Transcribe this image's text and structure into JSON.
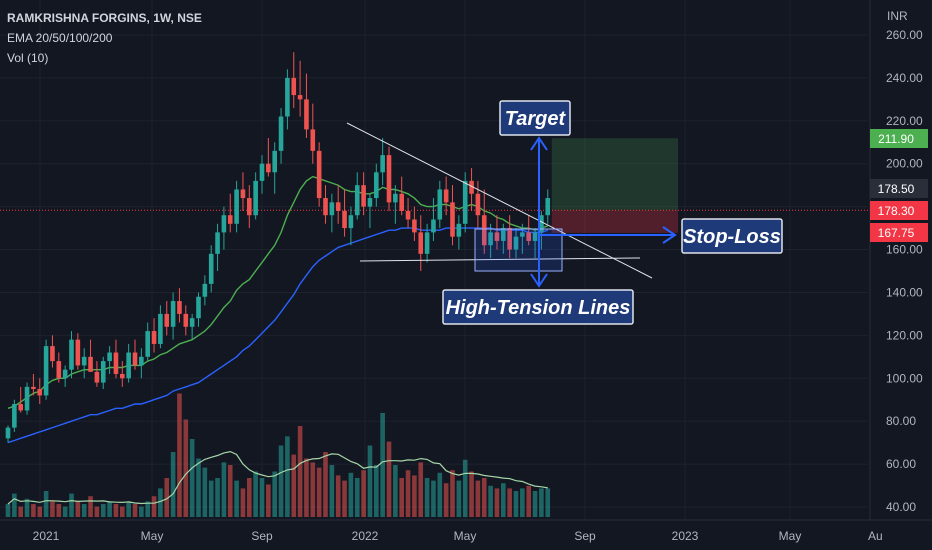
{
  "header": {
    "symbol": "RAMKRISHNA FORGINS, 1W, NSE",
    "indicator": "EMA 20/50/100/200",
    "volume": "Vol (10)"
  },
  "currency": "INR",
  "colors": {
    "background": "#131722",
    "up": "#26a69a",
    "down": "#ef5350",
    "ema_fast": "#4caf50",
    "ema_slow": "#2962ff",
    "target_badge": "#4caf50",
    "stop_badge": "#f23645",
    "annotation_box": "#1e3a78",
    "annotation_arrow": "#2962ff"
  },
  "chart_data": {
    "type": "candlestick",
    "y_axis_labels": [
      "260.00",
      "240.00",
      "220.00",
      "200.00",
      "180.00",
      "160.00",
      "140.00",
      "120.00",
      "100.00",
      "80.00",
      "60.00",
      "40.00"
    ],
    "x_axis_labels": [
      "2021",
      "May",
      "Sep",
      "2022",
      "May",
      "Sep",
      "2023",
      "May",
      "Au"
    ],
    "ylim": [
      36,
      264
    ],
    "ohlc_weekly": [
      [
        72,
        78,
        70,
        77
      ],
      [
        77,
        90,
        75,
        88
      ],
      [
        88,
        96,
        84,
        85
      ],
      [
        85,
        98,
        83,
        96
      ],
      [
        96,
        102,
        92,
        95
      ],
      [
        95,
        100,
        88,
        92
      ],
      [
        92,
        118,
        90,
        115
      ],
      [
        115,
        120,
        105,
        108
      ],
      [
        108,
        112,
        98,
        100
      ],
      [
        100,
        106,
        96,
        104
      ],
      [
        104,
        122,
        100,
        118
      ],
      [
        118,
        121,
        104,
        106
      ],
      [
        106,
        114,
        100,
        110
      ],
      [
        110,
        118,
        106,
        103
      ],
      [
        103,
        108,
        96,
        98
      ],
      [
        98,
        110,
        95,
        108
      ],
      [
        108,
        115,
        102,
        112
      ],
      [
        112,
        118,
        100,
        102
      ],
      [
        102,
        108,
        96,
        100
      ],
      [
        100,
        116,
        98,
        112
      ],
      [
        112,
        118,
        104,
        106
      ],
      [
        106,
        114,
        100,
        110
      ],
      [
        110,
        126,
        108,
        122
      ],
      [
        122,
        128,
        112,
        116
      ],
      [
        116,
        134,
        114,
        130
      ],
      [
        130,
        136,
        120,
        124
      ],
      [
        124,
        140,
        118,
        136
      ],
      [
        136,
        142,
        126,
        130
      ],
      [
        130,
        134,
        120,
        124
      ],
      [
        124,
        130,
        118,
        128
      ],
      [
        128,
        140,
        124,
        138
      ],
      [
        138,
        148,
        134,
        144
      ],
      [
        144,
        162,
        140,
        158
      ],
      [
        158,
        172,
        150,
        168
      ],
      [
        168,
        180,
        160,
        176
      ],
      [
        176,
        186,
        168,
        172
      ],
      [
        172,
        192,
        168,
        188
      ],
      [
        188,
        196,
        178,
        184
      ],
      [
        184,
        190,
        170,
        176
      ],
      [
        176,
        196,
        174,
        192
      ],
      [
        192,
        204,
        186,
        200
      ],
      [
        200,
        212,
        194,
        196
      ],
      [
        196,
        210,
        186,
        206
      ],
      [
        206,
        226,
        200,
        222
      ],
      [
        222,
        244,
        216,
        240
      ],
      [
        240,
        252,
        226,
        232
      ],
      [
        232,
        248,
        222,
        230
      ],
      [
        230,
        242,
        212,
        216
      ],
      [
        216,
        228,
        200,
        206
      ],
      [
        206,
        210,
        180,
        184
      ],
      [
        184,
        190,
        172,
        176
      ],
      [
        176,
        186,
        168,
        182
      ],
      [
        182,
        190,
        172,
        178
      ],
      [
        178,
        188,
        166,
        170
      ],
      [
        170,
        180,
        162,
        176
      ],
      [
        176,
        196,
        174,
        190
      ],
      [
        190,
        196,
        176,
        180
      ],
      [
        180,
        186,
        170,
        184
      ],
      [
        184,
        200,
        180,
        196
      ],
      [
        196,
        212,
        190,
        204
      ],
      [
        204,
        208,
        178,
        182
      ],
      [
        182,
        190,
        172,
        186
      ],
      [
        186,
        194,
        176,
        178
      ],
      [
        178,
        184,
        170,
        174
      ],
      [
        174,
        180,
        164,
        168
      ],
      [
        168,
        176,
        150,
        158
      ],
      [
        158,
        172,
        154,
        168
      ],
      [
        168,
        184,
        164,
        174
      ],
      [
        174,
        192,
        170,
        188
      ],
      [
        188,
        194,
        176,
        182
      ],
      [
        182,
        190,
        162,
        166
      ],
      [
        166,
        176,
        160,
        172
      ],
      [
        172,
        196,
        168,
        192
      ],
      [
        192,
        198,
        178,
        186
      ],
      [
        186,
        192,
        170,
        176
      ],
      [
        176,
        188,
        158,
        162
      ],
      [
        162,
        172,
        156,
        168
      ],
      [
        168,
        176,
        160,
        164
      ],
      [
        164,
        172,
        158,
        170
      ],
      [
        170,
        176,
        156,
        160
      ],
      [
        160,
        170,
        156,
        166
      ],
      [
        166,
        172,
        158,
        168
      ],
      [
        168,
        176,
        162,
        164
      ],
      [
        164,
        170,
        156,
        168
      ],
      [
        168,
        178,
        160,
        176
      ],
      [
        176,
        188,
        172,
        184
      ]
    ],
    "ema20": [
      86,
      87,
      89,
      91,
      93,
      94,
      97,
      99,
      100,
      100,
      102,
      103,
      104,
      104,
      104,
      104,
      105,
      105,
      105,
      106,
      106,
      106,
      108,
      109,
      111,
      112,
      114,
      116,
      117,
      118,
      120,
      122,
      125,
      129,
      133,
      136,
      141,
      144,
      146,
      150,
      154,
      158,
      162,
      168,
      176,
      182,
      188,
      192,
      194,
      193,
      192,
      191,
      190,
      188,
      187,
      187,
      186,
      186,
      187,
      189,
      188,
      188,
      187,
      186,
      184,
      181,
      180,
      180,
      181,
      181,
      180,
      179,
      180,
      181,
      180,
      178,
      177,
      175,
      174,
      172,
      171,
      170,
      170,
      169,
      170,
      171
    ],
    "ema50": [
      70,
      71,
      72,
      73,
      74,
      75,
      76,
      77,
      78,
      79,
      80,
      81,
      82,
      83,
      83,
      84,
      85,
      86,
      86,
      87,
      88,
      88,
      89,
      90,
      91,
      92,
      94,
      95,
      96,
      97,
      98,
      100,
      102,
      104,
      106,
      108,
      110,
      113,
      115,
      118,
      121,
      124,
      127,
      131,
      135,
      139,
      144,
      148,
      152,
      155,
      157,
      159,
      161,
      162,
      163,
      164,
      165,
      166,
      167,
      168,
      169,
      169,
      170,
      170,
      170,
      169,
      169,
      169,
      169,
      170,
      170,
      170,
      170,
      170,
      170,
      170,
      170,
      169,
      169,
      169,
      169,
      169,
      168,
      168,
      168,
      169
    ],
    "volume_rel": [
      0.1,
      0.18,
      0.08,
      0.14,
      0.1,
      0.08,
      0.2,
      0.12,
      0.1,
      0.08,
      0.18,
      0.12,
      0.1,
      0.16,
      0.08,
      0.1,
      0.12,
      0.1,
      0.08,
      0.12,
      0.1,
      0.08,
      0.12,
      0.16,
      0.22,
      0.3,
      0.5,
      0.95,
      0.75,
      0.6,
      0.45,
      0.38,
      0.28,
      0.3,
      0.42,
      0.4,
      0.28,
      0.22,
      0.3,
      0.35,
      0.3,
      0.25,
      0.35,
      0.55,
      0.62,
      0.48,
      0.7,
      0.45,
      0.42,
      0.38,
      0.5,
      0.4,
      0.32,
      0.28,
      0.34,
      0.3,
      0.36,
      0.55,
      0.4,
      0.8,
      0.58,
      0.4,
      0.3,
      0.36,
      0.32,
      0.42,
      0.3,
      0.28,
      0.34,
      0.26,
      0.36,
      0.28,
      0.44,
      0.35,
      0.28,
      0.3,
      0.24,
      0.22,
      0.26,
      0.22,
      0.2,
      0.22,
      0.24,
      0.2,
      0.22,
      0.22
    ],
    "price_badges": [
      {
        "label": "211.90",
        "value": 211.9,
        "color": "#4caf50"
      },
      {
        "label": "178.50",
        "value": 178.5,
        "color": "#2a2e39"
      },
      {
        "label": "178.30",
        "value": 178.3,
        "color": "#f23645"
      },
      {
        "label": "167.75",
        "value": 167.75,
        "color": "#f23645"
      }
    ],
    "target_price": 211.9,
    "entry_price": 178.3,
    "stop_price": 167.75,
    "annotations": {
      "target": "Target",
      "stop_loss": "Stop-Loss",
      "high_tension": "High-Tension Lines"
    }
  }
}
